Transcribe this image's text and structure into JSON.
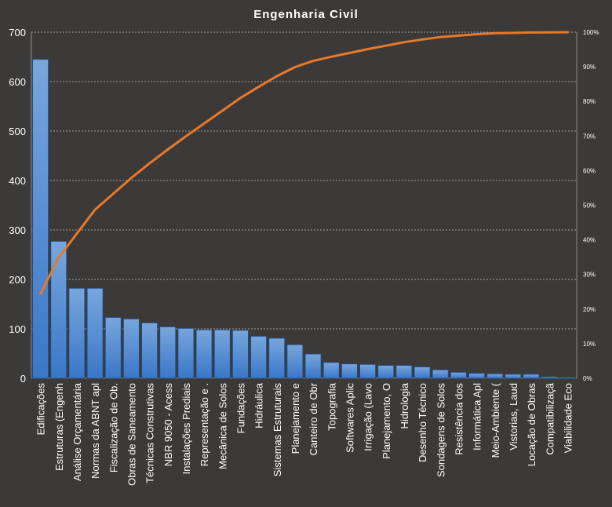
{
  "chart_data": {
    "type": "bar",
    "title": "Engenharia Civil",
    "categories": [
      "Edificações",
      "Estruturas (Engenh",
      "Análise Orçamentária",
      "Normas da ABNT apl",
      "Fiscalização de Ob.",
      "Obras de Saneamento",
      "Técnicas Construtivas",
      "NBR 9050 - Acess",
      "Instalações Prediais",
      "Representação e .",
      "Mecânica de Solos",
      "Fundações",
      "Hidráulica",
      "Sistemas Estruturais",
      "Planejamento e",
      "Canteiro de Obr",
      "Topografia",
      "Softwares Aplic",
      "Irrigação (Lavo",
      "Planejamento, O",
      "Hidrologia",
      "Desenho Técnico",
      "Sondagens de Solos",
      "Resistência dos",
      "Informática Apl",
      "Meio-Ambiente (",
      "Vistorias, Laud",
      "Locação de Obras",
      "Compatibilizaçã",
      "Viabilidade Eco"
    ],
    "series": [
      {
        "type": "bar",
        "axis": "left",
        "values": [
          645,
          277,
          182,
          182,
          123,
          120,
          112,
          104,
          101,
          98,
          98,
          97,
          85,
          81,
          68,
          49,
          32,
          29,
          28,
          26,
          26,
          23,
          17,
          12,
          10,
          9,
          8,
          8,
          3,
          2
        ]
      },
      {
        "type": "line",
        "axis": "right",
        "values": [
          0.244,
          0.349,
          0.418,
          0.487,
          0.533,
          0.579,
          0.621,
          0.661,
          0.699,
          0.736,
          0.773,
          0.81,
          0.842,
          0.873,
          0.899,
          0.917,
          0.929,
          0.94,
          0.951,
          0.961,
          0.971,
          0.979,
          0.986,
          0.99,
          0.994,
          0.997,
          0.998,
          0.999,
          0.9995,
          1.0
        ]
      }
    ],
    "y_left": {
      "min": 0,
      "max": 700,
      "ticks": [
        "0",
        "100",
        "200",
        "300",
        "400",
        "500",
        "600",
        "700"
      ]
    },
    "y_right": {
      "min": 0,
      "max": 1,
      "ticks": [
        "0%",
        "10%",
        "20%",
        "30%",
        "40%",
        "50%",
        "60%",
        "70%",
        "80%",
        "90%",
        "100%"
      ]
    },
    "grid": true,
    "legend": "none",
    "colors": {
      "background": "#3b3a38",
      "bar_fill_top": "#78a6dc",
      "bar_fill_bottom": "#3a77c8",
      "bar_stroke": "#1f4f8f",
      "line": "#e8782a",
      "text": "#ffffff",
      "grid": "#bfbfbf"
    }
  }
}
